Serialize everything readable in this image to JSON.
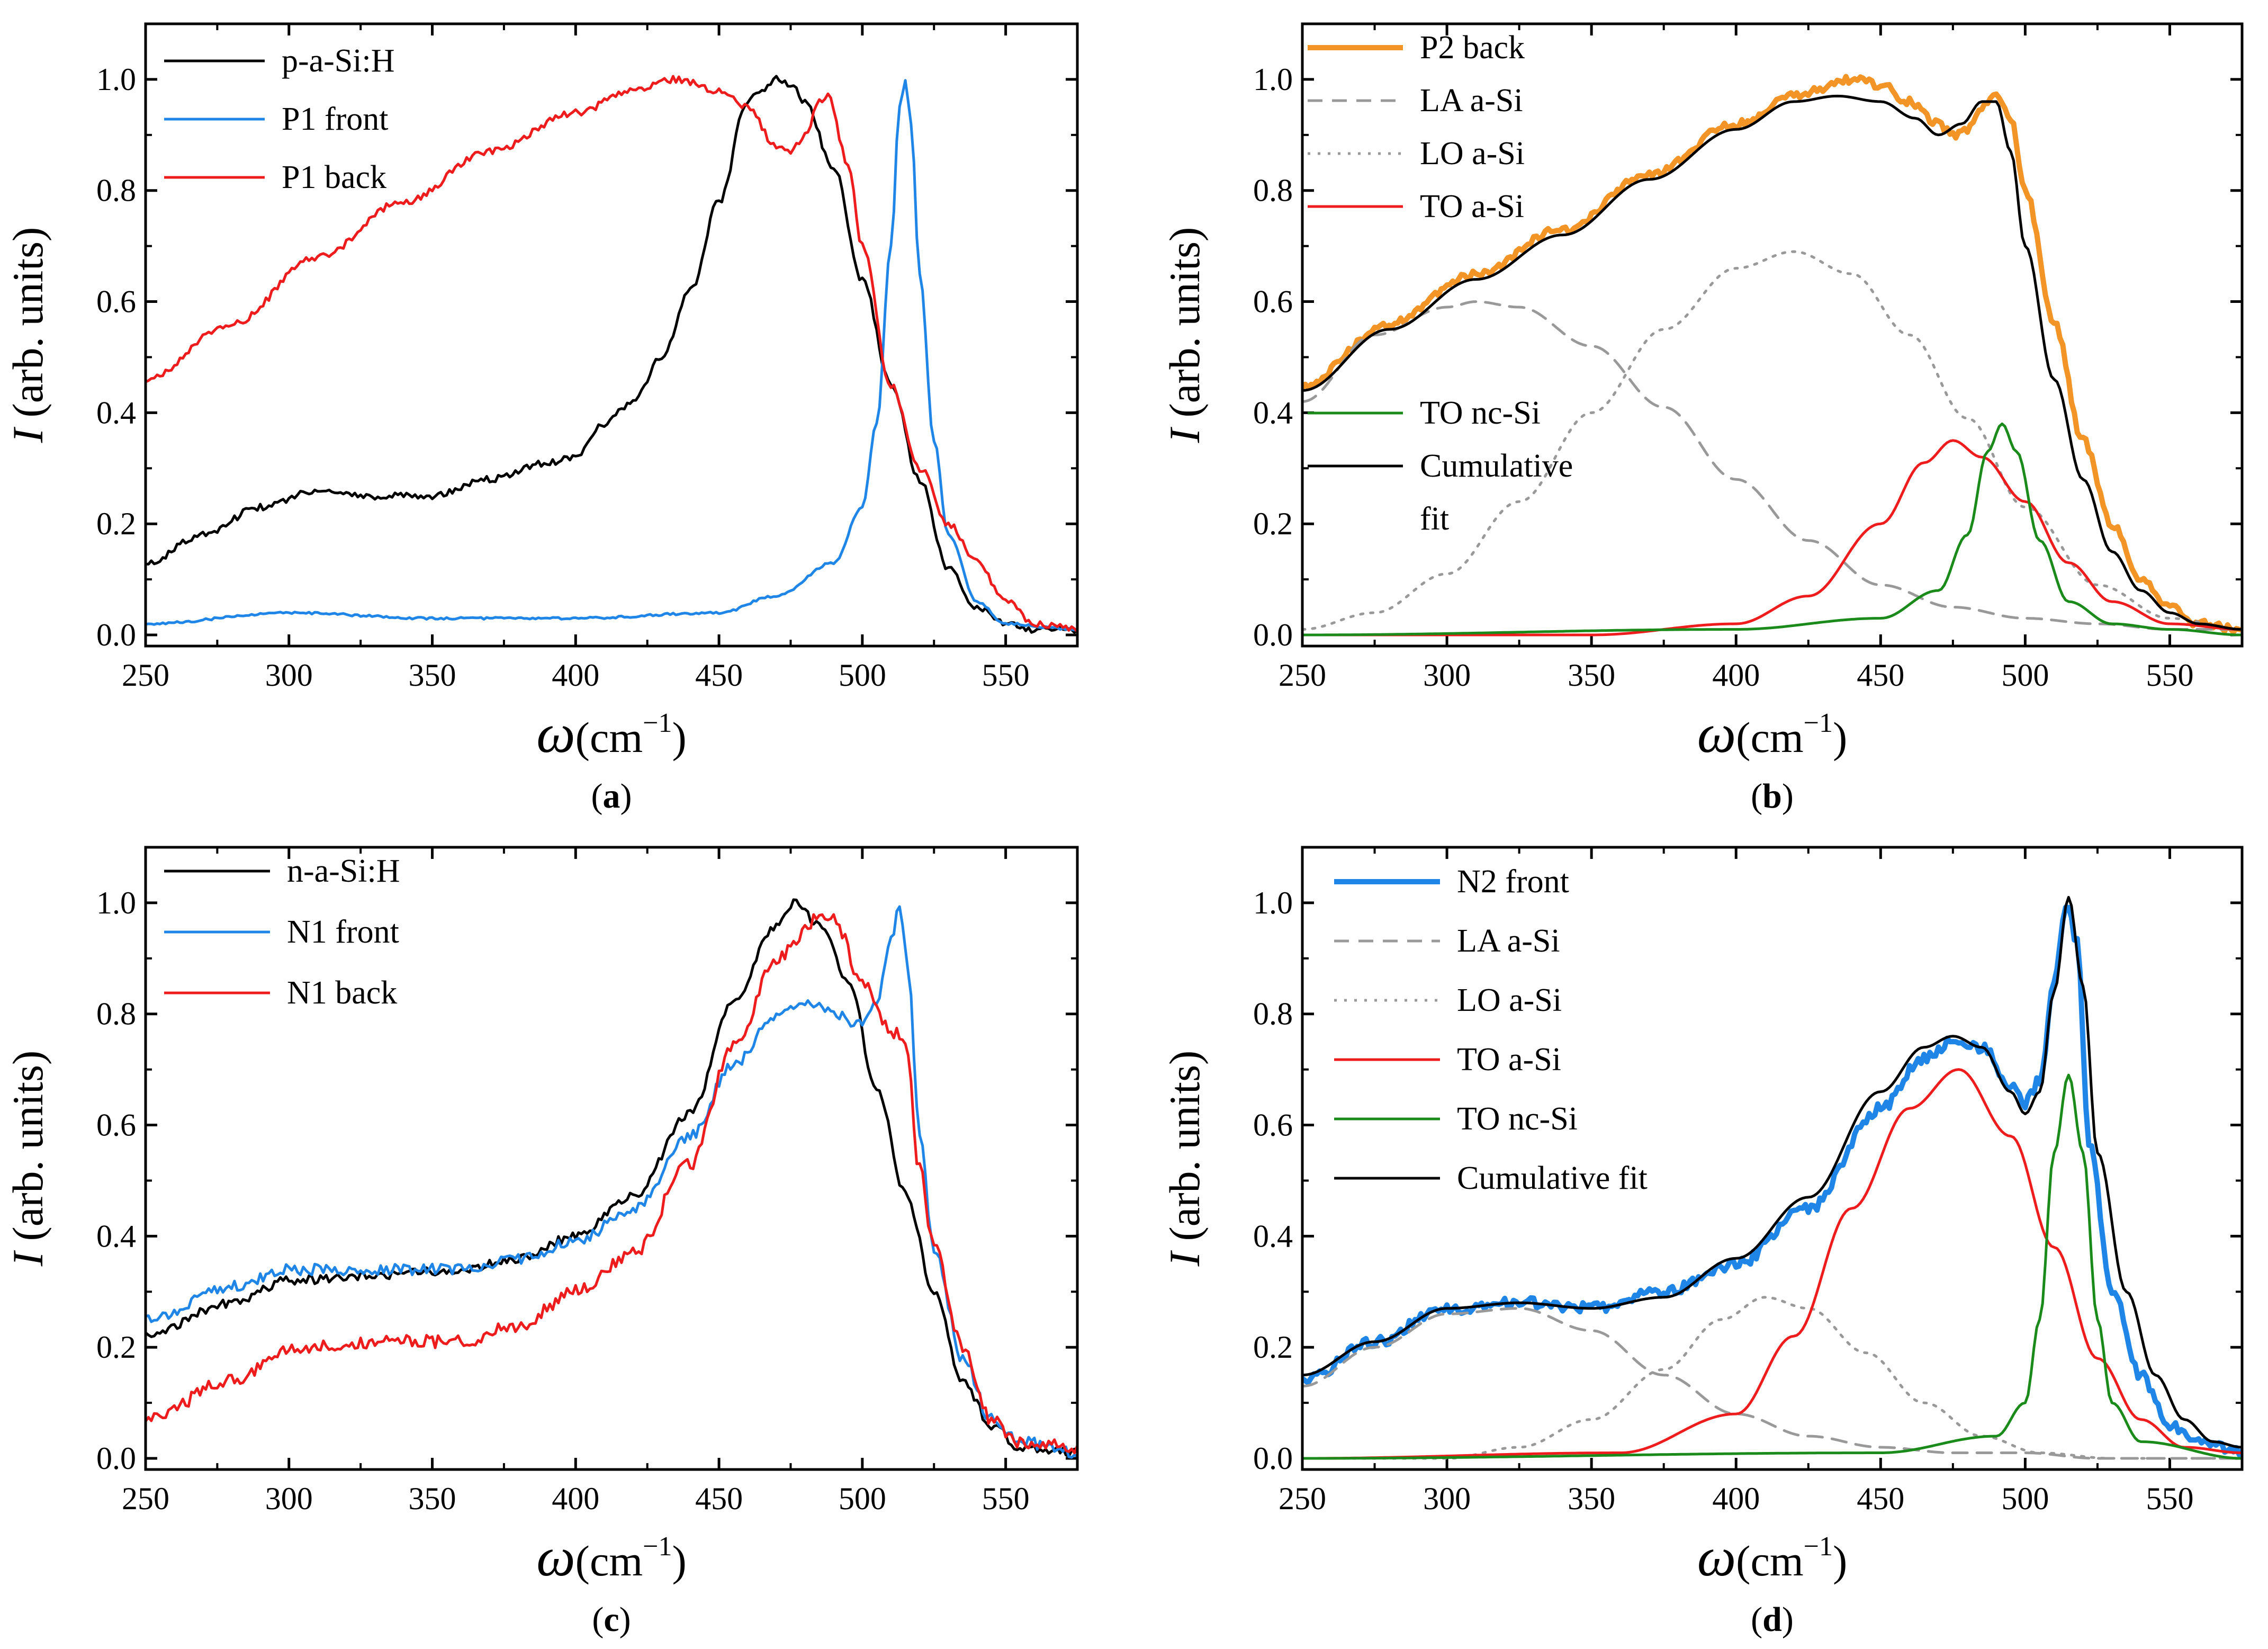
{
  "figure": {
    "colors": {
      "black": "#000000",
      "blue": "#1f86e8",
      "red": "#ee1c1c",
      "orange": "#f39426",
      "gray": "#999999",
      "green": "#1a8a1a"
    }
  },
  "chart_data": [
    {
      "id": "a",
      "type": "line",
      "caption_letter": "a",
      "xlabel_symbol": "ω",
      "xlabel_unit": "(cm",
      "xlabel_sup": "−1",
      "xlabel_close": ")",
      "ylabel_symbol": "I",
      "ylabel_unit": " (arb. units)",
      "xlim": [
        250,
        575
      ],
      "ylim": [
        -0.02,
        1.1
      ],
      "xticks": [
        "250",
        "300",
        "350",
        "400",
        "450",
        "500",
        "550"
      ],
      "yticks": [
        "0.0",
        "0.2",
        "0.4",
        "0.6",
        "0.8",
        "1.0"
      ],
      "series": [
        {
          "name": "p-a-Si:H",
          "color": "black",
          "style": "solid",
          "width": 5,
          "noise": 0.006,
          "x": [
            250,
            270,
            290,
            310,
            330,
            350,
            370,
            390,
            400,
            410,
            420,
            430,
            440,
            450,
            460,
            465,
            470,
            475,
            480,
            490,
            500,
            510,
            520,
            530,
            540,
            550,
            560,
            575
          ],
          "y": [
            0.13,
            0.18,
            0.23,
            0.26,
            0.25,
            0.25,
            0.28,
            0.31,
            0.32,
            0.38,
            0.42,
            0.5,
            0.62,
            0.78,
            0.96,
            0.98,
            1.0,
            0.99,
            0.96,
            0.84,
            0.64,
            0.45,
            0.28,
            0.12,
            0.05,
            0.02,
            0.01,
            0.01
          ]
        },
        {
          "name": "P1 front",
          "color": "blue",
          "style": "solid",
          "width": 5,
          "noise": 0.002,
          "x": [
            250,
            300,
            350,
            400,
            450,
            470,
            490,
            500,
            505,
            510,
            513,
            515,
            517,
            520,
            525,
            530,
            540,
            550,
            575
          ],
          "y": [
            0.02,
            0.04,
            0.03,
            0.03,
            0.04,
            0.07,
            0.13,
            0.23,
            0.38,
            0.7,
            0.95,
            1.0,
            0.92,
            0.65,
            0.35,
            0.18,
            0.06,
            0.02,
            0.01
          ]
        },
        {
          "name": "P1 back",
          "color": "red",
          "style": "solid",
          "width": 5,
          "noise": 0.006,
          "x": [
            250,
            280,
            310,
            340,
            370,
            400,
            420,
            435,
            450,
            460,
            470,
            475,
            480,
            485,
            488,
            495,
            500,
            510,
            520,
            530,
            540,
            550,
            560,
            575
          ],
          "y": [
            0.46,
            0.56,
            0.68,
            0.78,
            0.87,
            0.94,
            0.98,
            1.0,
            0.98,
            0.95,
            0.88,
            0.87,
            0.9,
            0.96,
            0.97,
            0.85,
            0.7,
            0.45,
            0.3,
            0.2,
            0.13,
            0.06,
            0.02,
            0.01
          ]
        }
      ]
    },
    {
      "id": "b",
      "type": "line",
      "caption_letter": "b",
      "xlabel_symbol": "ω",
      "xlabel_unit": "(cm",
      "xlabel_sup": "−1",
      "xlabel_close": ")",
      "ylabel_symbol": "I",
      "ylabel_unit": " (arb. units)",
      "xlim": [
        250,
        575
      ],
      "ylim": [
        -0.02,
        1.1
      ],
      "xticks": [
        "250",
        "300",
        "350",
        "400",
        "450",
        "500",
        "550"
      ],
      "yticks": [
        "0.0",
        "0.2",
        "0.4",
        "0.6",
        "0.8",
        "1.0"
      ],
      "series": [
        {
          "name": "P2 back",
          "color": "orange",
          "style": "solid",
          "width": 10,
          "noise": 0.007,
          "x": [
            250,
            280,
            310,
            340,
            370,
            400,
            420,
            440,
            450,
            460,
            470,
            475,
            480,
            487,
            490,
            495,
            500,
            510,
            520,
            530,
            540,
            550,
            560,
            575
          ],
          "y": [
            0.45,
            0.56,
            0.65,
            0.73,
            0.83,
            0.92,
            0.97,
            1.0,
            0.99,
            0.96,
            0.92,
            0.9,
            0.91,
            0.96,
            0.97,
            0.93,
            0.8,
            0.56,
            0.35,
            0.2,
            0.1,
            0.05,
            0.02,
            0.01
          ]
        },
        {
          "name": "LA a-Si",
          "color": "gray",
          "style": "dashed",
          "width": 5,
          "noise": 0,
          "x": [
            250,
            275,
            300,
            310,
            325,
            350,
            375,
            400,
            425,
            450,
            475,
            500,
            525,
            550,
            575
          ],
          "y": [
            0.42,
            0.54,
            0.59,
            0.6,
            0.59,
            0.52,
            0.41,
            0.28,
            0.17,
            0.09,
            0.05,
            0.03,
            0.02,
            0.01,
            0.01
          ]
        },
        {
          "name": "LO a-Si",
          "color": "gray",
          "style": "dotted",
          "width": 5,
          "noise": 0,
          "x": [
            250,
            275,
            300,
            325,
            350,
            375,
            400,
            420,
            440,
            460,
            480,
            500,
            525,
            550,
            575
          ],
          "y": [
            0.01,
            0.04,
            0.11,
            0.24,
            0.4,
            0.55,
            0.66,
            0.69,
            0.65,
            0.54,
            0.39,
            0.23,
            0.09,
            0.03,
            0.01
          ]
        },
        {
          "name": "TO a-Si",
          "color": "red",
          "style": "solid",
          "width": 5,
          "noise": 0,
          "x": [
            250,
            350,
            400,
            425,
            450,
            465,
            475,
            485,
            500,
            515,
            530,
            550,
            575
          ],
          "y": [
            0.0,
            0.0,
            0.02,
            0.07,
            0.2,
            0.31,
            0.35,
            0.32,
            0.24,
            0.13,
            0.06,
            0.02,
            0.01
          ]
        },
        {
          "name": "TO nc-Si",
          "color": "green",
          "style": "solid",
          "width": 5,
          "noise": 0,
          "x": [
            250,
            400,
            450,
            470,
            480,
            487,
            492,
            497,
            505,
            515,
            530,
            550,
            575
          ],
          "y": [
            0.0,
            0.01,
            0.03,
            0.08,
            0.18,
            0.33,
            0.38,
            0.33,
            0.17,
            0.06,
            0.02,
            0.01,
            0.0
          ]
        },
        {
          "name": "Cumulative",
          "color": "black",
          "style": "solid",
          "width": 5,
          "noise": 0,
          "x": [
            250,
            280,
            310,
            340,
            370,
            400,
            420,
            435,
            450,
            462,
            470,
            478,
            485,
            490,
            495,
            500,
            510,
            520,
            530,
            540,
            550,
            560,
            575
          ],
          "y": [
            0.44,
            0.55,
            0.64,
            0.72,
            0.82,
            0.91,
            0.96,
            0.97,
            0.96,
            0.93,
            0.9,
            0.92,
            0.96,
            0.96,
            0.87,
            0.7,
            0.46,
            0.28,
            0.15,
            0.08,
            0.04,
            0.02,
            0.01
          ]
        }
      ],
      "legend_extra_line": "fit"
    },
    {
      "id": "c",
      "type": "line",
      "caption_letter": "c",
      "xlabel_symbol": "ω",
      "xlabel_unit": "(cm",
      "xlabel_sup": "−1",
      "xlabel_close": ")",
      "ylabel_symbol": "I",
      "ylabel_unit": " (arb. units)",
      "xlim": [
        250,
        575
      ],
      "ylim": [
        -0.02,
        1.1
      ],
      "xticks": [
        "250",
        "300",
        "350",
        "400",
        "450",
        "500",
        "550"
      ],
      "yticks": [
        "0.0",
        "0.2",
        "0.4",
        "0.6",
        "0.8",
        "1.0"
      ],
      "series": [
        {
          "name": "n-a-Si:H",
          "color": "black",
          "style": "solid",
          "width": 5,
          "noise": 0.008,
          "x": [
            250,
            280,
            300,
            330,
            360,
            380,
            400,
            420,
            440,
            455,
            470,
            476,
            485,
            495,
            505,
            515,
            525,
            535,
            545,
            555,
            575
          ],
          "y": [
            0.22,
            0.28,
            0.32,
            0.33,
            0.34,
            0.36,
            0.4,
            0.47,
            0.62,
            0.82,
            0.96,
            1.0,
            0.96,
            0.86,
            0.67,
            0.48,
            0.3,
            0.14,
            0.06,
            0.02,
            0.01
          ]
        },
        {
          "name": "N1 front",
          "color": "blue",
          "style": "solid",
          "width": 5,
          "noise": 0.01,
          "x": [
            250,
            280,
            300,
            330,
            360,
            380,
            400,
            420,
            440,
            455,
            470,
            480,
            490,
            500,
            505,
            510,
            513,
            516,
            520,
            525,
            535,
            545,
            555,
            575
          ],
          "y": [
            0.25,
            0.31,
            0.34,
            0.34,
            0.34,
            0.36,
            0.39,
            0.45,
            0.58,
            0.71,
            0.8,
            0.82,
            0.8,
            0.78,
            0.82,
            0.93,
            1.0,
            0.88,
            0.58,
            0.38,
            0.18,
            0.07,
            0.03,
            0.01
          ]
        },
        {
          "name": "N1 back",
          "color": "red",
          "style": "solid",
          "width": 5,
          "noise": 0.012,
          "x": [
            250,
            280,
            300,
            330,
            360,
            380,
            400,
            420,
            440,
            455,
            470,
            485,
            490,
            500,
            510,
            515,
            520,
            525,
            535,
            545,
            555,
            575
          ],
          "y": [
            0.07,
            0.14,
            0.2,
            0.21,
            0.21,
            0.24,
            0.3,
            0.37,
            0.53,
            0.74,
            0.9,
            0.97,
            0.97,
            0.86,
            0.77,
            0.75,
            0.52,
            0.38,
            0.2,
            0.07,
            0.03,
            0.02
          ]
        }
      ]
    },
    {
      "id": "d",
      "type": "line",
      "caption_letter": "d",
      "xlabel_symbol": "ω",
      "xlabel_unit": "(cm",
      "xlabel_sup": "−1",
      "xlabel_close": ")",
      "ylabel_symbol": "I",
      "ylabel_unit": " (arb. units)",
      "xlim": [
        250,
        575
      ],
      "ylim": [
        -0.02,
        1.1
      ],
      "xticks": [
        "250",
        "300",
        "350",
        "400",
        "450",
        "500",
        "550"
      ],
      "yticks": [
        "0.0",
        "0.2",
        "0.4",
        "0.6",
        "0.8",
        "1.0"
      ],
      "series": [
        {
          "name": "N2 front",
          "color": "blue",
          "style": "solid",
          "width": 10,
          "noise": 0.01,
          "x": [
            250,
            275,
            300,
            325,
            350,
            375,
            400,
            425,
            450,
            465,
            475,
            485,
            495,
            500,
            505,
            510,
            514,
            518,
            522,
            530,
            540,
            550,
            560,
            575
          ],
          "y": [
            0.14,
            0.21,
            0.27,
            0.28,
            0.27,
            0.3,
            0.35,
            0.45,
            0.63,
            0.72,
            0.75,
            0.74,
            0.67,
            0.64,
            0.68,
            0.85,
            1.0,
            0.93,
            0.57,
            0.3,
            0.15,
            0.06,
            0.03,
            0.01
          ]
        },
        {
          "name": "LA a-Si",
          "color": "gray",
          "style": "dashed",
          "width": 5,
          "noise": 0,
          "x": [
            250,
            275,
            300,
            325,
            350,
            375,
            400,
            425,
            450,
            475,
            500,
            525,
            550,
            575
          ],
          "y": [
            0.13,
            0.2,
            0.26,
            0.27,
            0.23,
            0.15,
            0.08,
            0.04,
            0.02,
            0.01,
            0.01,
            0.0,
            0.0,
            0.0
          ]
        },
        {
          "name": "LO a-Si",
          "color": "gray",
          "style": "dotted",
          "width": 5,
          "noise": 0,
          "x": [
            250,
            300,
            325,
            350,
            375,
            395,
            410,
            425,
            445,
            465,
            485,
            505,
            530,
            575
          ],
          "y": [
            0.0,
            0.0,
            0.02,
            0.07,
            0.16,
            0.25,
            0.29,
            0.27,
            0.19,
            0.1,
            0.04,
            0.01,
            0.0,
            0.0
          ]
        },
        {
          "name": "TO a-Si",
          "color": "red",
          "style": "solid",
          "width": 5,
          "noise": 0,
          "x": [
            250,
            360,
            400,
            420,
            440,
            460,
            477,
            495,
            510,
            525,
            540,
            555,
            575
          ],
          "y": [
            0.0,
            0.01,
            0.08,
            0.22,
            0.45,
            0.63,
            0.7,
            0.58,
            0.38,
            0.18,
            0.07,
            0.02,
            0.01
          ]
        },
        {
          "name": "TO nc-Si",
          "color": "green",
          "style": "solid",
          "width": 5,
          "noise": 0,
          "x": [
            250,
            450,
            490,
            500,
            505,
            510,
            515,
            520,
            525,
            530,
            540,
            575
          ],
          "y": [
            0.0,
            0.01,
            0.04,
            0.1,
            0.25,
            0.55,
            0.69,
            0.55,
            0.25,
            0.1,
            0.03,
            0.0
          ]
        },
        {
          "name": "Cumulative fit",
          "color": "black",
          "style": "solid",
          "width": 5,
          "noise": 0,
          "x": [
            250,
            275,
            300,
            325,
            350,
            375,
            400,
            425,
            450,
            465,
            475,
            485,
            495,
            500,
            505,
            510,
            515,
            520,
            525,
            535,
            545,
            555,
            565,
            575
          ],
          "y": [
            0.15,
            0.21,
            0.27,
            0.28,
            0.27,
            0.29,
            0.36,
            0.47,
            0.66,
            0.74,
            0.76,
            0.74,
            0.66,
            0.62,
            0.66,
            0.84,
            1.01,
            0.85,
            0.55,
            0.3,
            0.15,
            0.07,
            0.03,
            0.02
          ]
        }
      ]
    }
  ]
}
